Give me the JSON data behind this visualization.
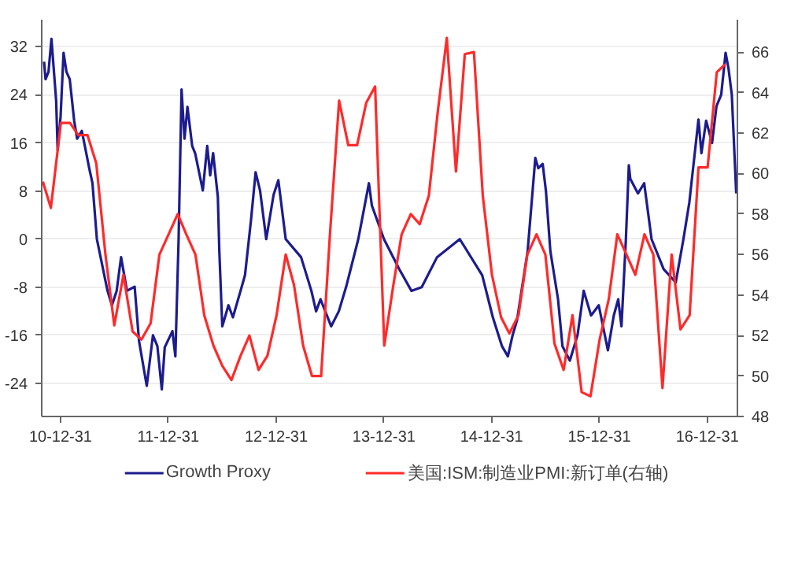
{
  "chart_data": {
    "type": "line",
    "xlim": [
      "2010-10-28",
      "2017-04-12"
    ],
    "xticks": [
      {
        "value": "2010-12-31",
        "label": "10-12-31"
      },
      {
        "value": "2011-12-31",
        "label": "11-12-31"
      },
      {
        "value": "2012-12-31",
        "label": "12-12-31"
      },
      {
        "value": "2013-12-31",
        "label": "13-12-31"
      },
      {
        "value": "2014-12-31",
        "label": "14-12-31"
      },
      {
        "value": "2015-12-31",
        "label": "15-12-31"
      },
      {
        "value": "2016-12-31",
        "label": "16-12-31"
      }
    ],
    "ylim": [
      -29.5,
      36.5
    ],
    "yticks": [
      -24,
      -16,
      -8,
      0,
      8,
      16,
      24,
      32
    ],
    "y2lim": [
      48,
      67.6
    ],
    "y2ticks": [
      48,
      50,
      52,
      54,
      56,
      58,
      60,
      62,
      64,
      66
    ],
    "grid": "y",
    "legend": "bottom",
    "series": [
      {
        "name": "Growth Proxy",
        "color": "#1c1c8f",
        "x": [
          "2010-11-05",
          "2010-11-10",
          "2010-11-20",
          "2010-11-30",
          "2010-12-16",
          "2010-12-21",
          "2010-12-31",
          "2011-01-10",
          "2011-01-20",
          "2011-01-31",
          "2011-02-15",
          "2011-02-25",
          "2011-03-13",
          "2011-03-28",
          "2011-04-07",
          "2011-04-18",
          "2011-05-03",
          "2011-06-08",
          "2011-06-23",
          "2011-07-09",
          "2011-07-24",
          "2011-08-13",
          "2011-09-08",
          "2011-09-23",
          "2011-10-19",
          "2011-11-09",
          "2011-11-24",
          "2011-12-09",
          "2011-12-19",
          "2012-01-14",
          "2012-01-24",
          "2012-02-04",
          "2012-02-14",
          "2012-02-24",
          "2012-03-05",
          "2012-03-21",
          "2012-03-31",
          "2012-04-26",
          "2012-05-11",
          "2012-05-21",
          "2012-05-31",
          "2012-06-16",
          "2012-06-21",
          "2012-07-01",
          "2012-07-22",
          "2012-08-06",
          "2012-09-01",
          "2012-09-16",
          "2012-10-06",
          "2012-10-22",
          "2012-11-06",
          "2012-11-27",
          "2012-12-22",
          "2013-01-07",
          "2013-02-01",
          "2013-03-25",
          "2013-04-29",
          "2013-05-15",
          "2013-05-30",
          "2013-07-05",
          "2013-07-31",
          "2013-08-25",
          "2013-10-05",
          "2013-11-10",
          "2013-11-20",
          "2013-12-31",
          "2014-02-21",
          "2014-04-03",
          "2014-05-08",
          "2014-06-29",
          "2014-09-14",
          "2014-11-29",
          "2015-01-04",
          "2015-02-04",
          "2015-02-24",
          "2015-03-12",
          "2015-03-27",
          "2015-05-02",
          "2015-05-28",
          "2015-06-07",
          "2015-06-22",
          "2015-07-03",
          "2015-07-18",
          "2015-08-13",
          "2015-08-28",
          "2015-09-22",
          "2015-10-18",
          "2015-11-08",
          "2015-12-03",
          "2015-12-29",
          "2016-01-29",
          "2016-02-18",
          "2016-03-04",
          "2016-03-15",
          "2016-03-30",
          "2016-04-09",
          "2016-04-14",
          "2016-05-10",
          "2016-05-31",
          "2016-06-25",
          "2016-08-05",
          "2016-09-15",
          "2016-10-11",
          "2016-10-31",
          "2016-12-01",
          "2016-12-11",
          "2016-12-27",
          "2017-01-16",
          "2017-01-31",
          "2017-02-16",
          "2017-03-03",
          "2017-03-13",
          "2017-03-24",
          "2017-04-08"
        ],
        "values": [
          29.5,
          26.6,
          27.8,
          33.3,
          23,
          14.8,
          20.4,
          31,
          27.8,
          26.6,
          19.7,
          16.7,
          18,
          14.3,
          11.8,
          9.3,
          0,
          -8.6,
          -11,
          -8.6,
          -3,
          -8.6,
          -7.9,
          -17,
          -24.4,
          -16,
          -17.8,
          -25,
          -18,
          -15.3,
          -19.5,
          0,
          24.9,
          16.7,
          22,
          15.5,
          14.3,
          8.1,
          15.5,
          10.6,
          14.3,
          7,
          -2,
          -14.5,
          -11,
          -13,
          -8.6,
          -6,
          3,
          11.1,
          8.1,
          0,
          7.4,
          9.8,
          0,
          -3,
          -8.6,
          -12,
          -10,
          -14.5,
          -12,
          -7.9,
          0,
          9.3,
          5.6,
          0,
          -5,
          -8.6,
          -8,
          -3,
          0,
          -6,
          -13,
          -17.8,
          -19.5,
          -16,
          -13.5,
          -2,
          13.5,
          11.8,
          12.5,
          8,
          -2,
          -10,
          -17.8,
          -20.2,
          -16,
          -8.6,
          -12.7,
          -11,
          -18.5,
          -12.7,
          -10,
          -14.5,
          0,
          12.3,
          10,
          7.6,
          9.3,
          0,
          -5,
          -7.2,
          0,
          6.1,
          19.9,
          14.3,
          19.7,
          16,
          22.1,
          24,
          31,
          28.3,
          24,
          7.6
        ]
      },
      {
        "name": "美国:ISM:制造业PMI:新订单(右轴)",
        "color": "#ff2a2a",
        "axis": "y2",
        "x": [
          "2010-11-01",
          "2010-11-28",
          "2011-01",
          "2011-02",
          "2011-03",
          "2011-04",
          "2011-05",
          "2011-06",
          "2011-07",
          "2011-08",
          "2011-09",
          "2011-10",
          "2011-11",
          "2011-12",
          "2012-01",
          "2012-02",
          "2012-03",
          "2012-04",
          "2012-05",
          "2012-06",
          "2012-07",
          "2012-08",
          "2012-09",
          "2012-10",
          "2012-11",
          "2012-12",
          "2013-01",
          "2013-02",
          "2013-03",
          "2013-04",
          "2013-05",
          "2013-06",
          "2013-07",
          "2013-08",
          "2013-09",
          "2013-10",
          "2013-11",
          "2013-12",
          "2014-01",
          "2014-02",
          "2014-03",
          "2014-04",
          "2014-05",
          "2014-06",
          "2014-07",
          "2014-08",
          "2014-09",
          "2014-10",
          "2014-11",
          "2014-12",
          "2015-01",
          "2015-02",
          "2015-03",
          "2015-04",
          "2015-05",
          "2015-06",
          "2015-07",
          "2015-08",
          "2015-09",
          "2015-10",
          "2015-11",
          "2015-12",
          "2016-01",
          "2016-02",
          "2016-03",
          "2016-04",
          "2016-05",
          "2016-06",
          "2016-07",
          "2016-08",
          "2016-09",
          "2016-10",
          "2016-11",
          "2016-12",
          "2017-01",
          "2017-02",
          "2017-03"
        ],
        "values": [
          59.6,
          58.3,
          62.5,
          62.5,
          61.9,
          61.9,
          60.5,
          56,
          52.5,
          55,
          52.2,
          51.8,
          52.6,
          56,
          57,
          58,
          57,
          56,
          53,
          51.5,
          50.5,
          49.8,
          51,
          52,
          50.3,
          51,
          53,
          56,
          54.5,
          51.5,
          50,
          50,
          57,
          63.6,
          61.4,
          61.4,
          63.5,
          64.3,
          51.5,
          54.5,
          57,
          58,
          57.5,
          58.9,
          63,
          66.7,
          60.1,
          65.9,
          66,
          58.9,
          55,
          52.9,
          52.1,
          53,
          56,
          57,
          56,
          51.6,
          50.3,
          53,
          49.2,
          49,
          51.8,
          53.8,
          57,
          56,
          55,
          57,
          56,
          49.4,
          56,
          52.3,
          53,
          60.3,
          60.3,
          65,
          65.4
        ]
      }
    ]
  }
}
